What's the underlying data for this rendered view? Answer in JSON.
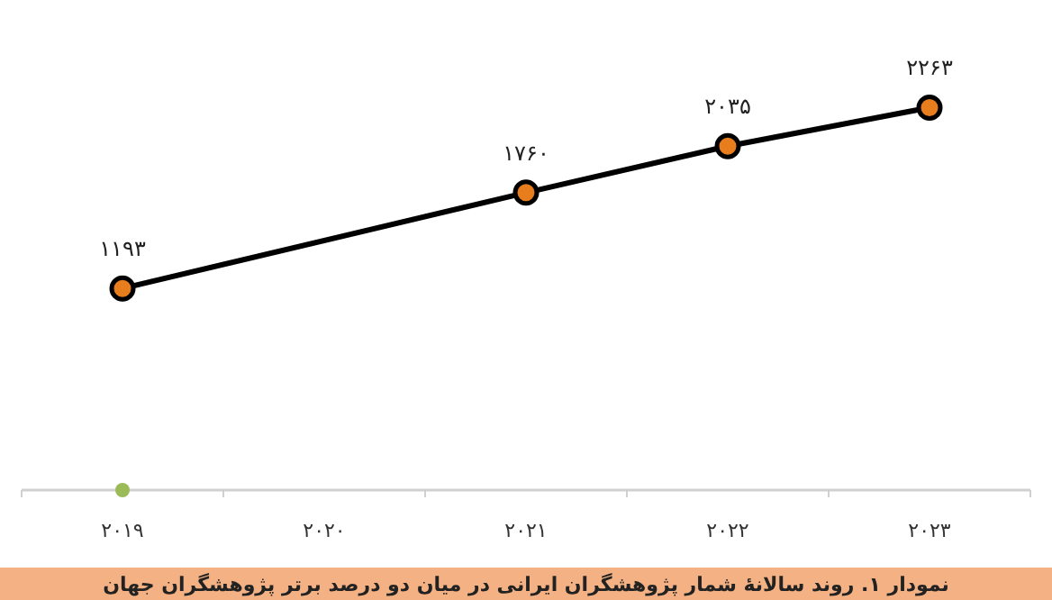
{
  "chart_data": {
    "type": "line",
    "title": "نمودار ۱. روند سالانهٔ شمار پژوهشگران ایرانی در میان دو درصد برتر پژوهشگران جهان",
    "categories": [
      "۲۰۱۹",
      "۲۰۲۰",
      "۲۰۲۱",
      "۲۰۲۲",
      "۲۰۲۳"
    ],
    "marker": "circle",
    "series": [
      {
        "color": "#000000",
        "values": [
          1193,
          null,
          1760,
          2035,
          2263
        ],
        "value_labels": [
          "۱۱۹۳",
          null,
          "۱۷۶۰",
          "۲۰۳۵",
          "۲۲۶۳"
        ]
      },
      {
        "type": "scatter",
        "color": "#9bbb59",
        "values": [
          0,
          null,
          null,
          null,
          null
        ]
      }
    ]
  }
}
